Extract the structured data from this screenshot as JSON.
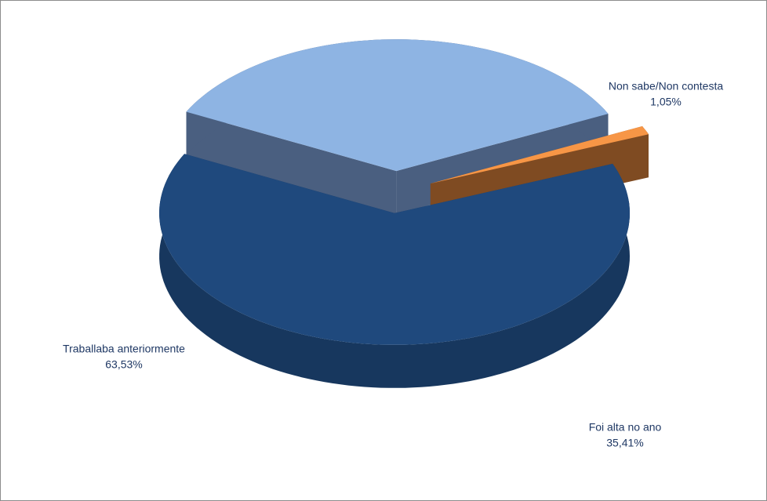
{
  "chart_data": {
    "type": "pie3d",
    "categories": [
      "Traballaba anteriormente",
      "Foi alta no ano",
      "Non sabe/Non contesta"
    ],
    "values": [
      63.53,
      35.41,
      1.05
    ],
    "value_labels": [
      "63,53%",
      "35,41%",
      "1,05%"
    ],
    "colors": [
      "#1f497d",
      "#8eb4e3",
      "#f79646"
    ],
    "side_colors": [
      "#17375e",
      "#4a5f80",
      "#7f4b22"
    ]
  }
}
